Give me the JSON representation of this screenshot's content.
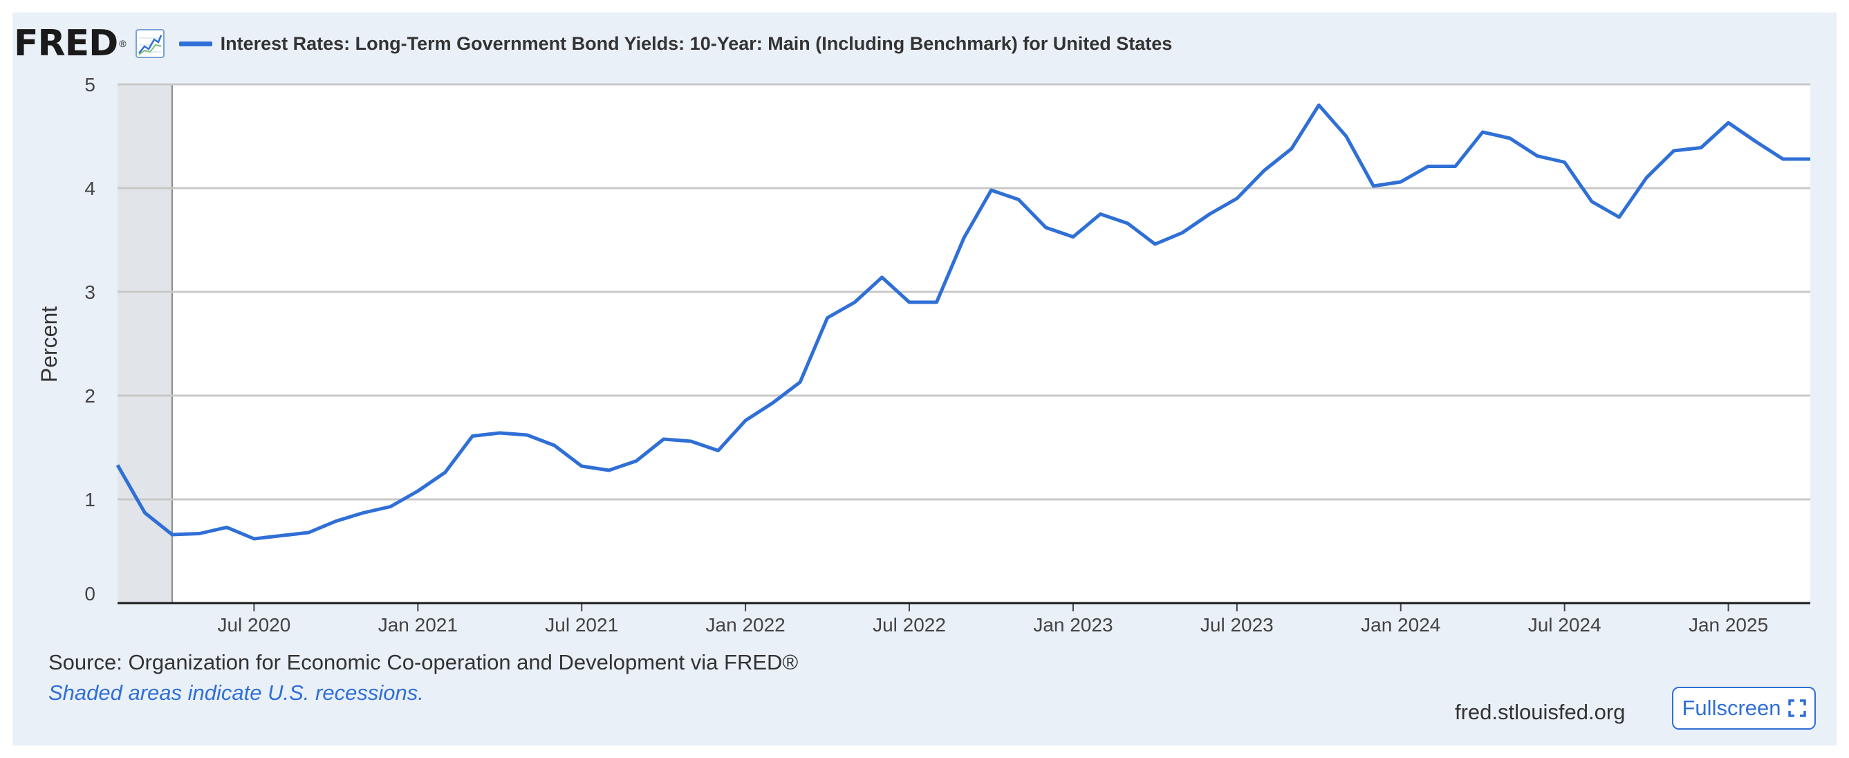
{
  "header": {
    "logo_text": "FRED",
    "logo_mark": "®",
    "logo_icon": "line-chart-icon",
    "legend_label": "Interest Rates: Long-Term Government Bond Yields: 10-Year: Main (Including Benchmark) for United States"
  },
  "chart_data": {
    "type": "line",
    "title": "",
    "xlabel": "",
    "ylabel": "Percent",
    "ylim": [
      0,
      5
    ],
    "yticks": [
      "0",
      "1",
      "2",
      "3",
      "4",
      "5"
    ],
    "xtick_labels": [
      "Jul 2020",
      "Jan 2021",
      "Jul 2021",
      "Jan 2022",
      "Jul 2022",
      "Jan 2023",
      "Jul 2023",
      "Jan 2024",
      "Jul 2024",
      "Jan 2025"
    ],
    "x_start": "2020-02",
    "x_end": "2025-04",
    "grid": true,
    "legend_position": "top",
    "recession_shading": [
      [
        "2020-02",
        "2020-04"
      ]
    ],
    "series": [
      {
        "name": "Interest Rates: Long-Term Government Bond Yields: 10-Year: Main (Including Benchmark) for United States",
        "color": "#2f6fd6",
        "x": [
          "2020-02",
          "2020-03",
          "2020-04",
          "2020-05",
          "2020-06",
          "2020-07",
          "2020-08",
          "2020-09",
          "2020-10",
          "2020-11",
          "2020-12",
          "2021-01",
          "2021-02",
          "2021-03",
          "2021-04",
          "2021-05",
          "2021-06",
          "2021-07",
          "2021-08",
          "2021-09",
          "2021-10",
          "2021-11",
          "2021-12",
          "2022-01",
          "2022-02",
          "2022-03",
          "2022-04",
          "2022-05",
          "2022-06",
          "2022-07",
          "2022-08",
          "2022-09",
          "2022-10",
          "2022-11",
          "2022-12",
          "2023-01",
          "2023-02",
          "2023-03",
          "2023-04",
          "2023-05",
          "2023-06",
          "2023-07",
          "2023-08",
          "2023-09",
          "2023-10",
          "2023-11",
          "2023-12",
          "2024-01",
          "2024-02",
          "2024-03",
          "2024-04",
          "2024-05",
          "2024-06",
          "2024-07",
          "2024-08",
          "2024-09",
          "2024-10",
          "2024-11",
          "2024-12",
          "2025-01",
          "2025-02",
          "2025-03",
          "2025-04"
        ],
        "values": [
          1.33,
          0.87,
          0.66,
          0.67,
          0.73,
          0.62,
          0.65,
          0.68,
          0.79,
          0.87,
          0.93,
          1.08,
          1.26,
          1.61,
          1.64,
          1.62,
          1.52,
          1.32,
          1.28,
          1.37,
          1.58,
          1.56,
          1.47,
          1.76,
          1.93,
          2.13,
          2.75,
          2.9,
          3.14,
          2.9,
          2.9,
          3.52,
          3.98,
          3.89,
          3.62,
          3.53,
          3.75,
          3.66,
          3.46,
          3.57,
          3.75,
          3.9,
          4.17,
          4.38,
          4.8,
          4.5,
          4.02,
          4.06,
          4.21,
          4.21,
          4.54,
          4.48,
          4.31,
          4.25,
          3.87,
          3.72,
          4.1,
          4.36,
          4.39,
          4.63,
          4.45,
          4.28,
          4.28
        ]
      }
    ]
  },
  "footer": {
    "source": "Source: Organization for Economic Co-operation and Development via FRED®",
    "note": "Shaded areas indicate U.S. recessions.",
    "site": "fred.stlouisfed.org",
    "fullscreen_label": "Fullscreen",
    "fullscreen_icon": "expand-icon"
  }
}
